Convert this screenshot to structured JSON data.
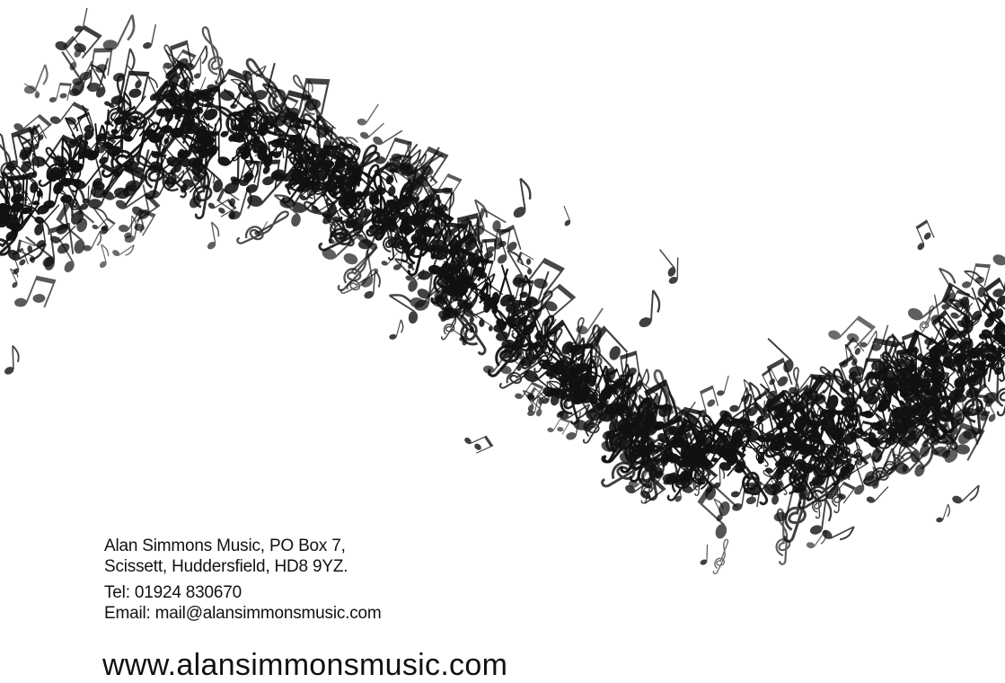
{
  "contact": {
    "address_line1": "Alan Simmons Music, PO Box 7,",
    "address_line2": "Scissett, Huddersfield, HD8 9YZ.",
    "tel": "Tel: 01924 830670",
    "email": "Email: mail@alansimmonsmusic.com",
    "website": "www.alansimmonsmusic.com"
  },
  "artwork": {
    "description_icon": "music-notes-wave-icon",
    "ink_color": "#111111",
    "background_color": "#ffffff"
  }
}
